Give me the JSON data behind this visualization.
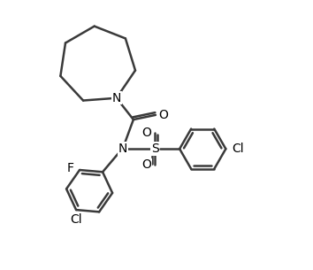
{
  "line_color": "#3a3a3a",
  "line_width": 1.8,
  "font_size_labels": 9,
  "background": "#ffffff",
  "figsize": [
    3.54,
    3.05
  ],
  "dpi": 100,
  "xlim": [
    0,
    10
  ],
  "ylim": [
    0,
    8.6
  ]
}
